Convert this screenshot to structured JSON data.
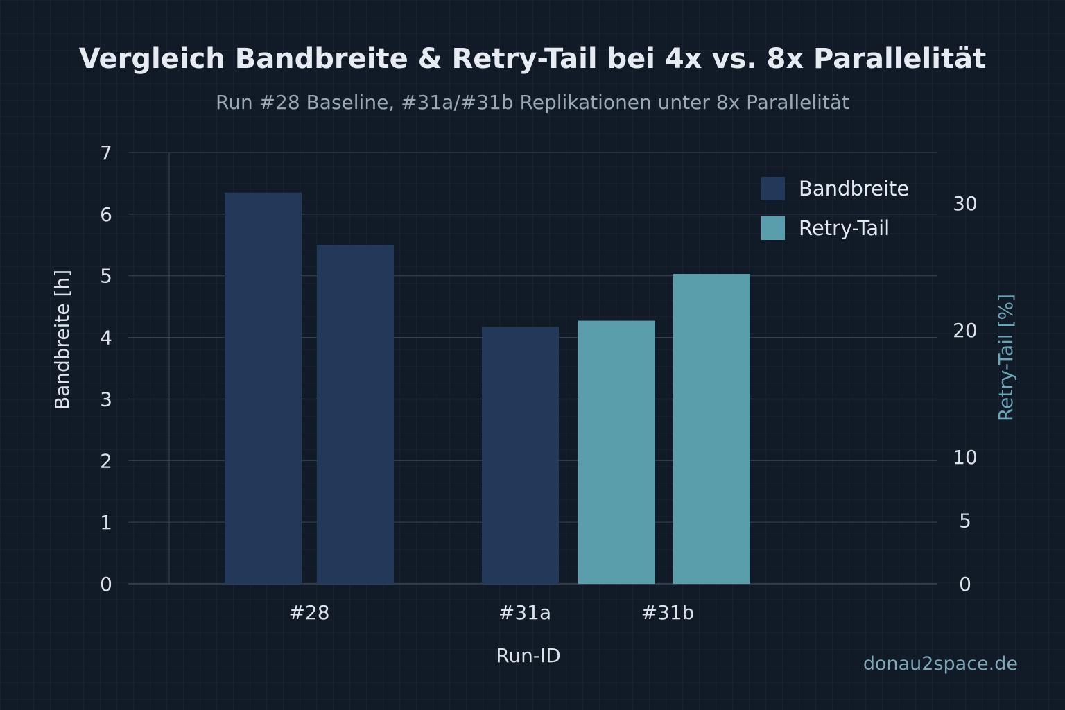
{
  "title": "Vergleich Bandbreite & Retry-Tail bei 4x vs. 8x Parallelität",
  "subtitle": "Run #28 Baseline, #31a/#31b Replikationen unter 8x Parallelität",
  "watermark": "donau2space.de",
  "legend": {
    "placement": "top-right",
    "items": [
      {
        "label": "Bandbreite",
        "color": "#22395a"
      },
      {
        "label": "Retry-Tail",
        "color": "#5a9eab"
      }
    ]
  },
  "chart_data": {
    "type": "bar",
    "xlabel": "Run-ID",
    "ylabel": "Bandbreite [h]",
    "y2label": "Retry-Tail [%]",
    "ylim": [
      0,
      7
    ],
    "y2lim": [
      0,
      34
    ],
    "yticks": [
      0,
      1,
      2,
      3,
      4,
      5,
      6,
      7
    ],
    "y2ticks": [
      0,
      5,
      10,
      20,
      30
    ],
    "grid": true,
    "categories": [
      "#28",
      "#31a",
      "#31b"
    ],
    "bars": [
      {
        "category": "#28",
        "series": "Bandbreite",
        "value": 6.35
      },
      {
        "category": "#28",
        "series": "Bandbreite",
        "value": 5.5
      },
      {
        "category": "#31a",
        "series": "Bandbreite",
        "value": 4.17
      },
      {
        "category": "#31a",
        "series": "Retry-Tail",
        "value": 4.27
      },
      {
        "category": "#31b",
        "series": "Retry-Tail",
        "value": 5.03
      }
    ],
    "colors": {
      "Bandbreite": "#22395a",
      "Retry-Tail": "#5a9eab"
    },
    "text_color": "#dbe2ea",
    "y2_label_color": "#6aa6b6",
    "grid_color": "#3a4656"
  }
}
